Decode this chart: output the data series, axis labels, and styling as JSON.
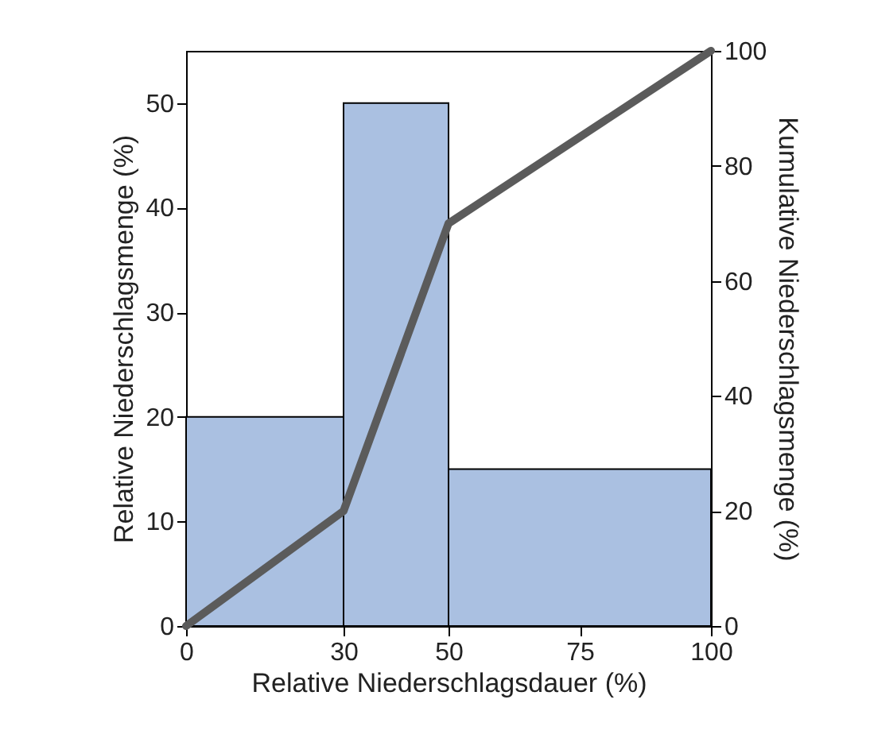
{
  "chart_data": {
    "type": "histogram",
    "bins": [
      0,
      30,
      50,
      100
    ],
    "values": [
      20,
      50,
      15
    ],
    "color": "#aac0e1",
    "xlabel": "Relative Niederschlagsdauer (%)",
    "ylabel": "Relative Niederschlagsmenge (%)",
    "y2label": "Kumulative Niederschlagsmenge (%)",
    "xlim": [
      0,
      100
    ],
    "xticks": [
      0,
      30,
      50,
      75,
      100
    ],
    "ylim": [
      0,
      55
    ],
    "yticks": [
      0,
      10,
      20,
      30,
      40,
      50
    ],
    "y2lim": [
      0,
      100
    ],
    "y2ticks": [
      0,
      20,
      40,
      60,
      80,
      100
    ],
    "series": [
      {
        "type": "line",
        "x": [
          0,
          30,
          50,
          100
        ],
        "values": [
          0,
          20,
          70,
          100
        ],
        "axis": "y2",
        "color": "#5b5b5b"
      }
    ]
  }
}
